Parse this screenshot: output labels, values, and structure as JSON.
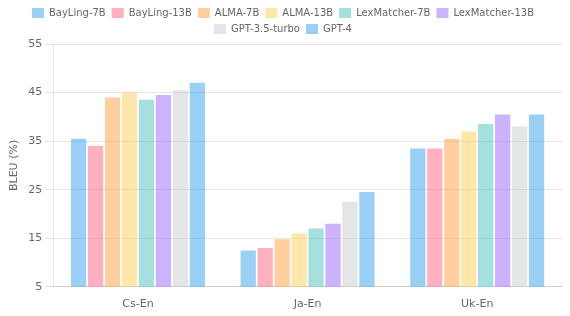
{
  "chart_data": {
    "type": "bar",
    "categories": [
      "Cs-En",
      "Ja-En",
      "Uk-En"
    ],
    "series": [
      {
        "name": "BayLing-7B",
        "values": [
          35.5,
          12.5,
          33.5
        ]
      },
      {
        "name": "BayLing-13B",
        "values": [
          34.0,
          13.0,
          33.5
        ]
      },
      {
        "name": "ALMA-7B",
        "values": [
          44.0,
          14.8,
          35.5
        ]
      },
      {
        "name": "ALMA-13B",
        "values": [
          45.0,
          16.0,
          37.0
        ]
      },
      {
        "name": "LexMatcher-7B",
        "values": [
          43.5,
          17.0,
          38.5
        ]
      },
      {
        "name": "LexMatcher-13B",
        "values": [
          44.5,
          18.0,
          40.5
        ]
      },
      {
        "name": "GPT-3.5-turbo",
        "values": [
          45.5,
          22.5,
          38.0
        ]
      },
      {
        "name": "GPT-4",
        "values": [
          47.0,
          24.5,
          40.5
        ]
      }
    ],
    "ylabel": "BLEU (%)",
    "ylim": [
      5,
      55
    ],
    "yticks": [
      5,
      15,
      25,
      35,
      45,
      55
    ],
    "grid": true,
    "legend": "top"
  }
}
